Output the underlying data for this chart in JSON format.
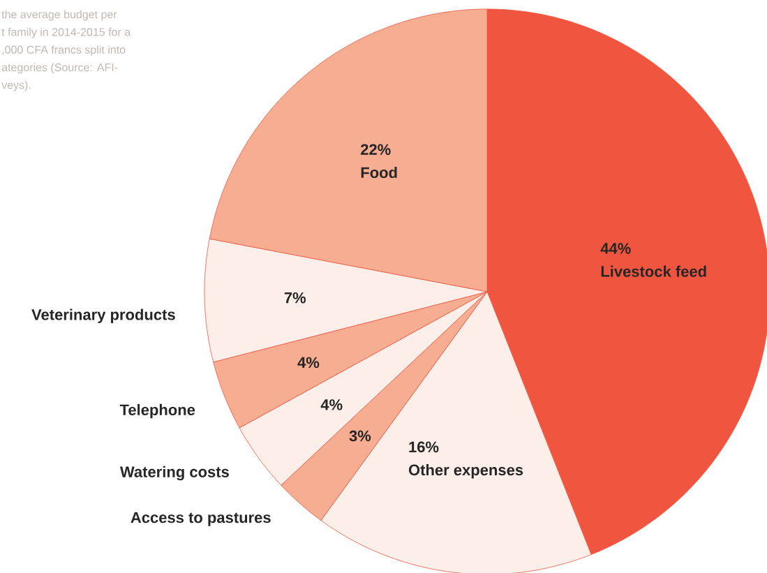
{
  "chart_data": {
    "type": "pie",
    "categories": [
      "Livestock feed",
      "Other expenses",
      "Access to pastures",
      "Watering costs",
      "Telephone",
      "Veterinary products",
      "Food"
    ],
    "values": [
      44,
      16,
      3,
      4,
      4,
      7,
      22
    ],
    "value_labels": [
      "44%",
      "16%",
      "3%",
      "4%",
      "4%",
      "7%",
      "22%"
    ],
    "colors": [
      "#f0563f",
      "#fcefea",
      "#f7ad91",
      "#fcefea",
      "#f7ad91",
      "#fcefea",
      "#f7ad91"
    ],
    "annotations": [
      "the average budget per",
      "t family in 2014-2015 for a",
      ",000 CFA francs split into",
      "ategories (Source: AFI-",
      "veys)."
    ]
  }
}
